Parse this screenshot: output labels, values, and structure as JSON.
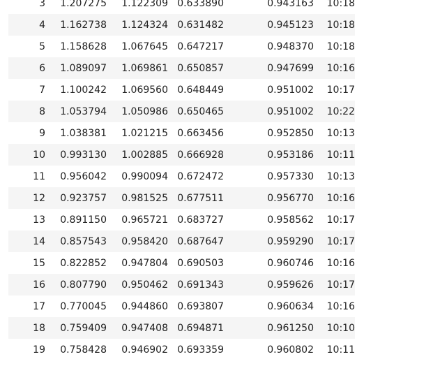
{
  "table": {
    "rows": [
      {
        "index": "3",
        "col1": "1.207275",
        "col2": "1.122309",
        "col3": "0.633890",
        "col4": "0.943163",
        "time": "10:18"
      },
      {
        "index": "4",
        "col1": "1.162738",
        "col2": "1.124324",
        "col3": "0.631482",
        "col4": "0.945123",
        "time": "10:18"
      },
      {
        "index": "5",
        "col1": "1.158628",
        "col2": "1.067645",
        "col3": "0.647217",
        "col4": "0.948370",
        "time": "10:18"
      },
      {
        "index": "6",
        "col1": "1.089097",
        "col2": "1.069861",
        "col3": "0.650857",
        "col4": "0.947699",
        "time": "10:16"
      },
      {
        "index": "7",
        "col1": "1.100242",
        "col2": "1.069560",
        "col3": "0.648449",
        "col4": "0.951002",
        "time": "10:17"
      },
      {
        "index": "8",
        "col1": "1.053794",
        "col2": "1.050986",
        "col3": "0.650465",
        "col4": "0.951002",
        "time": "10:22"
      },
      {
        "index": "9",
        "col1": "1.038381",
        "col2": "1.021215",
        "col3": "0.663456",
        "col4": "0.952850",
        "time": "10:13"
      },
      {
        "index": "10",
        "col1": "0.993130",
        "col2": "1.002885",
        "col3": "0.666928",
        "col4": "0.953186",
        "time": "10:11"
      },
      {
        "index": "11",
        "col1": "0.956042",
        "col2": "0.990094",
        "col3": "0.672472",
        "col4": "0.957330",
        "time": "10:13"
      },
      {
        "index": "12",
        "col1": "0.923757",
        "col2": "0.981525",
        "col3": "0.677511",
        "col4": "0.956770",
        "time": "10:16"
      },
      {
        "index": "13",
        "col1": "0.891150",
        "col2": "0.965721",
        "col3": "0.683727",
        "col4": "0.958562",
        "time": "10:17"
      },
      {
        "index": "14",
        "col1": "0.857543",
        "col2": "0.958420",
        "col3": "0.687647",
        "col4": "0.959290",
        "time": "10:17"
      },
      {
        "index": "15",
        "col1": "0.822852",
        "col2": "0.947804",
        "col3": "0.690503",
        "col4": "0.960746",
        "time": "10:16"
      },
      {
        "index": "16",
        "col1": "0.807790",
        "col2": "0.950462",
        "col3": "0.691343",
        "col4": "0.959626",
        "time": "10:17"
      },
      {
        "index": "17",
        "col1": "0.770045",
        "col2": "0.944860",
        "col3": "0.693807",
        "col4": "0.960634",
        "time": "10:16"
      },
      {
        "index": "18",
        "col1": "0.759409",
        "col2": "0.947408",
        "col3": "0.694871",
        "col4": "0.961250",
        "time": "10:10"
      },
      {
        "index": "19",
        "col1": "0.758428",
        "col2": "0.946902",
        "col3": "0.693359",
        "col4": "0.960802",
        "time": "10:11"
      }
    ]
  },
  "colors": {
    "stripe": "#f5f5f5",
    "background": "#ffffff",
    "text": "#222222"
  }
}
